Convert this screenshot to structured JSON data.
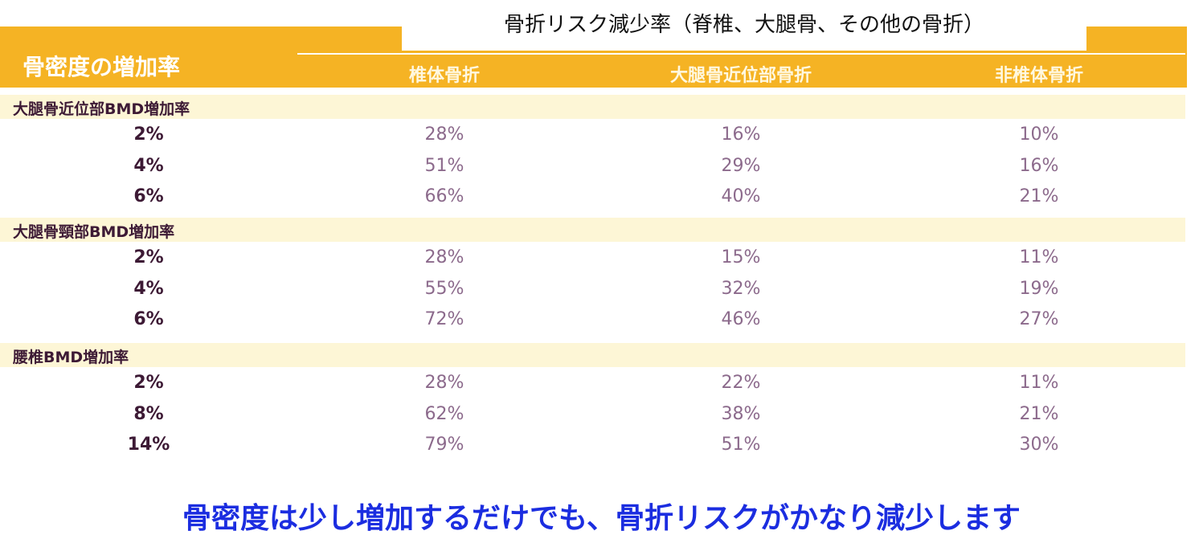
{
  "header": {
    "title": "骨折リスク減少率（脊椎、大腿骨、その他の骨折）",
    "row_header": "骨密度の増加率",
    "columns": [
      "椎体骨折",
      "大腿骨近位部骨折",
      "非椎体骨折"
    ]
  },
  "groups": [
    {
      "label": "大腿骨近位部BMD増加率",
      "rows": [
        [
          "2%",
          "28%",
          "16%",
          "10%"
        ],
        [
          "4%",
          "51%",
          "29%",
          "16%"
        ],
        [
          "6%",
          "66%",
          "40%",
          "21%"
        ]
      ]
    },
    {
      "label": "大腿骨頸部BMD増加率",
      "rows": [
        [
          "2%",
          "28%",
          "15%",
          "11%"
        ],
        [
          "4%",
          "55%",
          "32%",
          "19%"
        ],
        [
          "6%",
          "72%",
          "46%",
          "27%"
        ]
      ]
    },
    {
      "label": "腰椎BMD増加率",
      "rows": [
        [
          "2%",
          "28%",
          "22%",
          "11%"
        ],
        [
          "8%",
          "62%",
          "38%",
          "21%"
        ],
        [
          "14%",
          "79%",
          "51%",
          "30%"
        ]
      ]
    }
  ],
  "footer": "骨密度は少し増加するだけでも、骨折リスクがかなり減少します"
}
